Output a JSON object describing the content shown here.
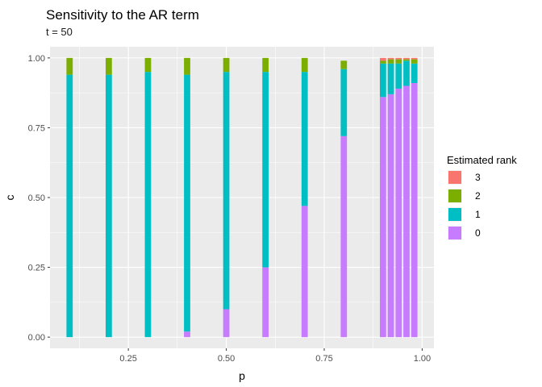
{
  "chart_data": {
    "type": "bar",
    "stacked": true,
    "title": "Sensitivity to the AR term",
    "subtitle": "t = 50",
    "xlabel": "p",
    "ylabel": "c",
    "xlim": [
      0.05,
      1.03
    ],
    "ylim": [
      -0.04,
      1.04
    ],
    "bar_width": 0.016,
    "x_ticks": [
      0.25,
      0.5,
      0.75,
      1.0
    ],
    "x_tick_labels": [
      "0.25",
      "0.50",
      "0.75",
      "1.00"
    ],
    "y_ticks": [
      0,
      0.25,
      0.5,
      0.75,
      1.0
    ],
    "y_tick_labels": [
      "0.00",
      "0.25",
      "0.50",
      "0.75",
      "1.00"
    ],
    "grid": true,
    "legend": {
      "title": "Estimated rank",
      "position": "right",
      "entries": [
        "3",
        "2",
        "1",
        "0"
      ]
    },
    "colors": {
      "3": "#F8766D",
      "2": "#7CAE00",
      "1": "#00BFC4",
      "0": "#C77CFF"
    },
    "x": [
      0.1,
      0.2,
      0.3,
      0.4,
      0.5,
      0.6,
      0.7,
      0.8,
      0.9,
      0.92,
      0.94,
      0.96,
      0.98
    ],
    "series": [
      {
        "name": "0",
        "values": [
          0.0,
          0.0,
          0.0,
          0.02,
          0.1,
          0.25,
          0.47,
          0.72,
          0.86,
          0.87,
          0.89,
          0.9,
          0.91
        ]
      },
      {
        "name": "1",
        "values": [
          0.94,
          0.94,
          0.95,
          0.92,
          0.85,
          0.7,
          0.48,
          0.24,
          0.12,
          0.11,
          0.09,
          0.09,
          0.07
        ]
      },
      {
        "name": "2",
        "values": [
          0.06,
          0.06,
          0.05,
          0.06,
          0.05,
          0.05,
          0.05,
          0.03,
          0.01,
          0.015,
          0.015,
          0.005,
          0.015
        ]
      },
      {
        "name": "3",
        "values": [
          0,
          0,
          0,
          0,
          0,
          0,
          0,
          0,
          0.01,
          0.005,
          0.005,
          0.005,
          0.005
        ]
      }
    ]
  }
}
